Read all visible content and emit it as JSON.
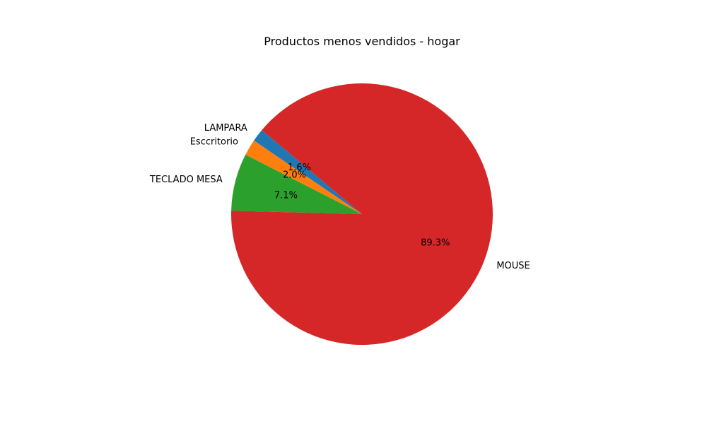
{
  "chart_data": {
    "type": "pie",
    "title": "Productos menos vendidos - hogar",
    "slices": [
      {
        "label": "LAMPARA",
        "value": 1.6,
        "pct_label": "1.6%",
        "color": "#1f77b4"
      },
      {
        "label": "Esccritorio",
        "value": 2.0,
        "pct_label": "2.0%",
        "color": "#ff7f0e"
      },
      {
        "label": "TECLADO  MESA",
        "value": 7.1,
        "pct_label": "7.1%",
        "color": "#2ca02c"
      },
      {
        "label": "MOUSE",
        "value": 89.3,
        "pct_label": "89.3%",
        "color": "#d62728"
      }
    ],
    "start_angle_deg": 140,
    "direction": "counterclockwise",
    "legend": "none"
  }
}
